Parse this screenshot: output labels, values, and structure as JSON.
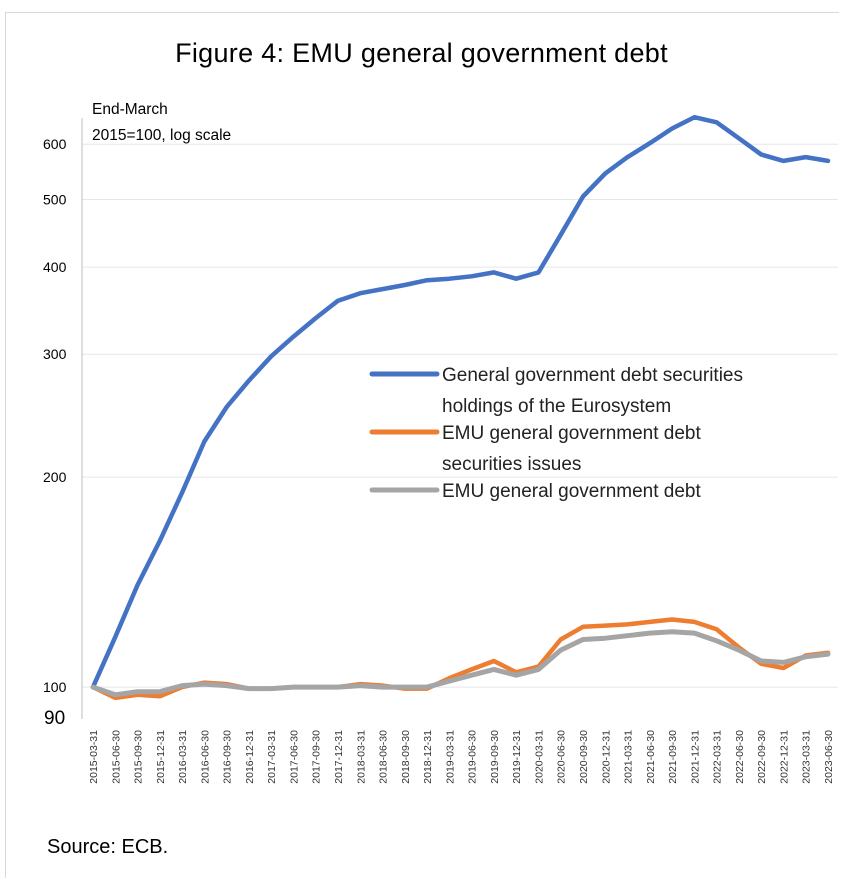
{
  "title": "Figure 4: EMU general government debt",
  "note_line1": "End-March",
  "note_line2": "2015=100,  log scale",
  "source": "Source: ECB.",
  "chart_data": {
    "type": "line",
    "y_scale": "log",
    "ylim": [
      90,
      650
    ],
    "y_ticks": [
      "90",
      "100",
      "200",
      "300",
      "400",
      "500",
      "600"
    ],
    "y_tick_values": [
      90,
      100,
      200,
      300,
      400,
      500,
      600
    ],
    "grid": "horizontal",
    "legend_position": "center-right",
    "x": [
      "2015-03-31",
      "2015-06-30",
      "2015-09-30",
      "2015-12-31",
      "2016-03-31",
      "2016-06-30",
      "2016-09-30",
      "2016-12-31",
      "2017-03-31",
      "2017-06-30",
      "2017-09-30",
      "2017-12-31",
      "2018-03-31",
      "2018-06-30",
      "2018-09-30",
      "2018-12-31",
      "2019-03-31",
      "2019-06-30",
      "2019-09-30",
      "2019-12-31",
      "2020-03-31",
      "2020-06-30",
      "2020-09-30",
      "2020-12-31",
      "2021-03-31",
      "2021-06-30",
      "2021-09-30",
      "2021-12-31",
      "2022-03-31",
      "2022-06-30",
      "2022-09-30",
      "2022-12-31",
      "2023-03-31",
      "2023-06-30"
    ],
    "series": [
      {
        "name": "General government debt securities holdings of the Eurosystem",
        "legend_lines": [
          "General government debt securities",
          "holdings of the Eurosystem"
        ],
        "color": "#4472C4",
        "values": [
          100,
          118,
          140,
          162,
          190,
          225,
          252,
          275,
          298,
          318,
          338,
          358,
          367,
          372,
          377,
          383,
          385,
          388,
          393,
          385,
          393,
          445,
          505,
          545,
          575,
          602,
          632,
          656,
          645,
          612,
          580,
          568,
          575,
          568
        ]
      },
      {
        "name": "EMU general government debt securities issues",
        "legend_lines": [
          "EMU general government debt",
          "securities issues"
        ],
        "color": "#ED7D31",
        "values": [
          100,
          96.5,
          97.5,
          97,
          100,
          101.5,
          101,
          99.5,
          99.5,
          100,
          100,
          100,
          101,
          100.5,
          99.5,
          99.5,
          103,
          106,
          109,
          105,
          107,
          117,
          122,
          122.5,
          123,
          124,
          125,
          124,
          121,
          114,
          108,
          106.5,
          111,
          112
        ]
      },
      {
        "name": "EMU general government debt",
        "legend_lines": [
          "EMU general government debt"
        ],
        "color": "#A5A5A5",
        "values": [
          100,
          97.5,
          98.5,
          98.5,
          100.5,
          101,
          100.5,
          99.5,
          99.5,
          100,
          100,
          100,
          100.5,
          100,
          100,
          100,
          102,
          104,
          106,
          104,
          106,
          113,
          117,
          117.5,
          118.5,
          119.5,
          120,
          119.5,
          116.5,
          113,
          109,
          108.5,
          110.5,
          111.5
        ]
      }
    ]
  }
}
